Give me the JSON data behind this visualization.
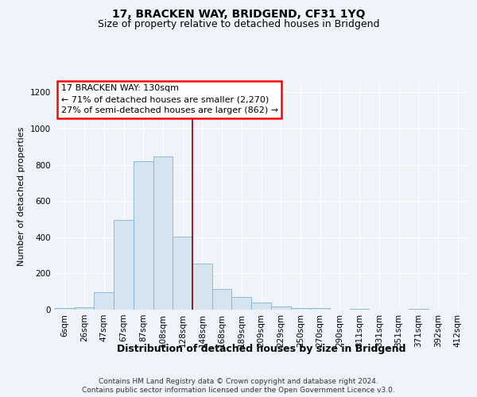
{
  "title": "17, BRACKEN WAY, BRIDGEND, CF31 1YQ",
  "subtitle": "Size of property relative to detached houses in Bridgend",
  "xlabel": "Distribution of detached houses by size in Bridgend",
  "ylabel": "Number of detached properties",
  "categories": [
    "6sqm",
    "26sqm",
    "47sqm",
    "67sqm",
    "87sqm",
    "108sqm",
    "128sqm",
    "148sqm",
    "168sqm",
    "189sqm",
    "209sqm",
    "229sqm",
    "250sqm",
    "270sqm",
    "290sqm",
    "311sqm",
    "331sqm",
    "351sqm",
    "371sqm",
    "392sqm",
    "412sqm"
  ],
  "values": [
    8,
    12,
    95,
    495,
    820,
    845,
    405,
    255,
    115,
    68,
    38,
    18,
    10,
    8,
    0,
    4,
    0,
    0,
    5,
    0,
    2
  ],
  "bar_color": "#d6e4f0",
  "bar_edge_color": "#7ab3d4",
  "vline_x": 6.5,
  "vline_color": "#8b0000",
  "annotation_line1": "17 BRACKEN WAY: 130sqm",
  "annotation_line2": "← 71% of detached houses are smaller (2,270)",
  "annotation_line3": "27% of semi-detached houses are larger (862) →",
  "ylim": [
    0,
    1250
  ],
  "yticks": [
    0,
    200,
    400,
    600,
    800,
    1000,
    1200
  ],
  "bg_color": "#f0f4fa",
  "grid_color": "#ffffff",
  "footer_line1": "Contains HM Land Registry data © Crown copyright and database right 2024.",
  "footer_line2": "Contains public sector information licensed under the Open Government Licence v3.0.",
  "title_fontsize": 10,
  "subtitle_fontsize": 9,
  "xlabel_fontsize": 9,
  "ylabel_fontsize": 8,
  "tick_fontsize": 7.5,
  "annotation_fontsize": 8,
  "footer_fontsize": 6.5
}
